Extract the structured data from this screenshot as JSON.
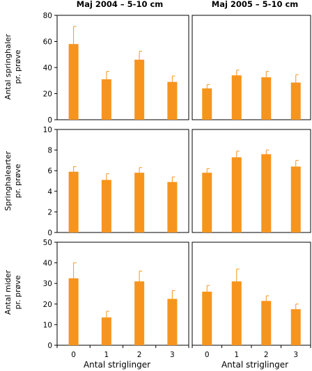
{
  "colors": {
    "bar": "#f7941d",
    "error": "#f7941d",
    "axis": "#000000"
  },
  "column_titles": [
    "Maj 2004 – 5-10 cm",
    "Maj 2005 – 5-10 cm"
  ],
  "row_ylabels": [
    [
      "Antal springhaler",
      "pr. prøve"
    ],
    [
      "Springhalearter",
      "pr. prøve"
    ],
    [
      "Antal mider",
      "pr. prøve"
    ]
  ],
  "xlabel": "Antal striglinger",
  "chart_data": [
    {
      "type": "bar",
      "title": "Maj 2004 – 5-10 cm",
      "row": 0,
      "col": 0,
      "categories": [
        "0",
        "1",
        "2",
        "3"
      ],
      "values": [
        58,
        31,
        46,
        29
      ],
      "errors": [
        13.5,
        6,
        6.5,
        4.5
      ],
      "ylim": [
        0,
        80
      ],
      "yticks": [
        0,
        20,
        40,
        60,
        80
      ],
      "ylabel": "Antal springhaler pr. prøve",
      "xlabel": ""
    },
    {
      "type": "bar",
      "title": "Maj 2005 – 5-10 cm",
      "row": 0,
      "col": 1,
      "categories": [
        "0",
        "1",
        "2",
        "3"
      ],
      "values": [
        24,
        34,
        32.5,
        28.5
      ],
      "errors": [
        3,
        4,
        4.5,
        6
      ],
      "ylim": [
        0,
        80
      ],
      "yticks": [
        0,
        20,
        40,
        60,
        80
      ],
      "ylabel": "",
      "xlabel": ""
    },
    {
      "type": "bar",
      "title": "",
      "row": 1,
      "col": 0,
      "categories": [
        "0",
        "1",
        "2",
        "3"
      ],
      "values": [
        5.9,
        5.1,
        5.8,
        4.9
      ],
      "errors": [
        0.5,
        0.6,
        0.5,
        0.5
      ],
      "ylim": [
        0,
        10
      ],
      "yticks": [
        0,
        2,
        4,
        6,
        8,
        10
      ],
      "ylabel": "Springhalearter pr. prøve",
      "xlabel": ""
    },
    {
      "type": "bar",
      "title": "",
      "row": 1,
      "col": 1,
      "categories": [
        "0",
        "1",
        "2",
        "3"
      ],
      "values": [
        5.8,
        7.3,
        7.6,
        6.4
      ],
      "errors": [
        0.4,
        0.6,
        0.4,
        0.6
      ],
      "ylim": [
        0,
        10
      ],
      "yticks": [
        0,
        2,
        4,
        6,
        8,
        10
      ],
      "ylabel": "",
      "xlabel": ""
    },
    {
      "type": "bar",
      "title": "",
      "row": 2,
      "col": 0,
      "categories": [
        "0",
        "1",
        "2",
        "3"
      ],
      "values": [
        32.5,
        13.5,
        31,
        22.5
      ],
      "errors": [
        7.5,
        3,
        5,
        4
      ],
      "ylim": [
        0,
        50
      ],
      "yticks": [
        0,
        10,
        20,
        30,
        40,
        50
      ],
      "ylabel": "Antal mider pr. prøve",
      "xlabel": "Antal striglinger"
    },
    {
      "type": "bar",
      "title": "",
      "row": 2,
      "col": 1,
      "categories": [
        "0",
        "1",
        "2",
        "3"
      ],
      "values": [
        26,
        31,
        21.5,
        17.5
      ],
      "errors": [
        3,
        6,
        2.5,
        2.5
      ],
      "ylim": [
        0,
        50
      ],
      "yticks": [
        0,
        10,
        20,
        30,
        40,
        50
      ],
      "ylabel": "",
      "xlabel": "Antal striglinger"
    }
  ]
}
